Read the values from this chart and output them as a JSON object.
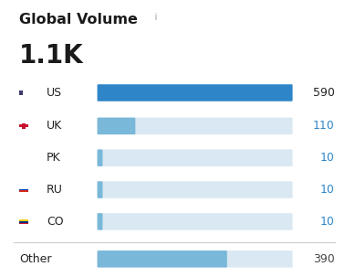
{
  "title": "Global Volume",
  "title_info": " i",
  "subtitle": "1.1K",
  "categories": [
    "US",
    "UK",
    "PK",
    "RU",
    "CO"
  ],
  "values": [
    590,
    110,
    10,
    10,
    10
  ],
  "other_label": "Other",
  "other_value": 390,
  "max_bar": 590,
  "bar_color_us": "#2e86c8",
  "bar_color_uk": "#7ab8d9",
  "bar_color_other": "#7ab8d9",
  "bar_color_bg": "#d9e8f2",
  "value_color_us": "#222222",
  "value_color_blue": "#2e86c8",
  "value_color_other": "#444444",
  "label_color": "#222222",
  "bg_color": "#ffffff",
  "separator_color": "#cccccc",
  "title_fontsize": 11.5,
  "subtitle_fontsize": 20,
  "label_fontsize": 9,
  "value_fontsize": 9,
  "info_fontsize": 8,
  "fig_width": 3.78,
  "fig_height": 3.03,
  "dpi": 100
}
